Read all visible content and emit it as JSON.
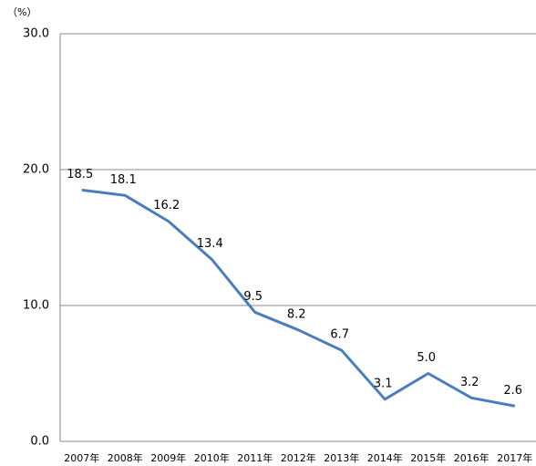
{
  "chart_data": {
    "type": "line",
    "unit_label": "（%）",
    "categories": [
      "2007年",
      "2008年",
      "2009年",
      "2010年",
      "2011年",
      "2012年",
      "2013年",
      "2014年",
      "2015年",
      "2016年",
      "2017年"
    ],
    "series": [
      {
        "color": "#4a7ebb",
        "values": [
          18.5,
          18.1,
          16.2,
          13.4,
          9.5,
          8.2,
          6.7,
          3.1,
          5.0,
          3.2,
          2.6
        ],
        "value_labels": [
          "18.5",
          "18.1",
          "16.2",
          "13.4",
          "9.5",
          "8.2",
          "6.7",
          "3.1",
          "5.0",
          "3.2",
          "2.6"
        ]
      }
    ],
    "ylim": [
      0,
      30
    ],
    "yticks": [
      {
        "value": 0,
        "label": "0.0"
      },
      {
        "value": 10,
        "label": "10.0"
      },
      {
        "value": 20,
        "label": "20.0"
      },
      {
        "value": 30,
        "label": "30.0"
      }
    ],
    "grid": true
  }
}
